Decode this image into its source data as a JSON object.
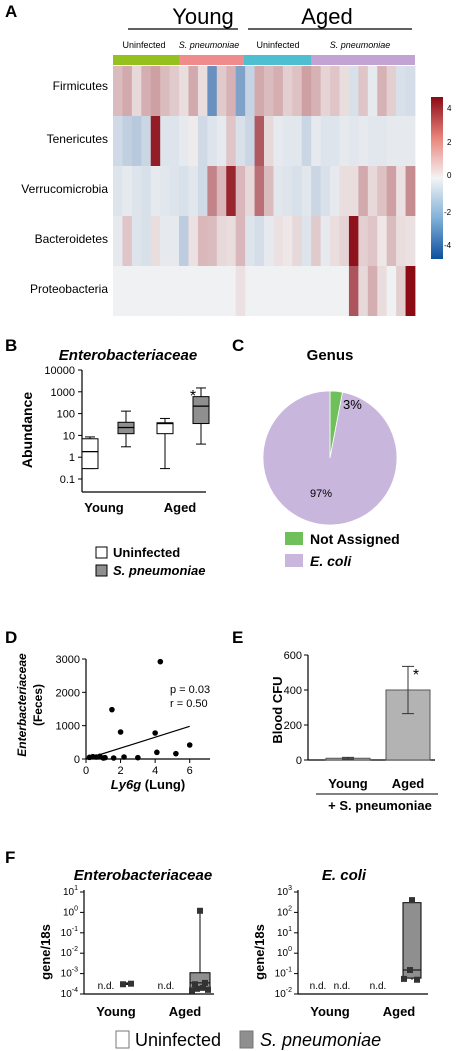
{
  "figure": {
    "panel_letters": [
      "A",
      "B",
      "C",
      "D",
      "E",
      "F"
    ]
  },
  "heatmap": {
    "group_labels": [
      "Young",
      "Aged"
    ],
    "subgroup_labels": [
      "Uninfected",
      "S. pneumoniae",
      "Uninfected",
      "S. pneumoniae"
    ],
    "row_labels": [
      "Firmicutes",
      "Tenericutes",
      "Verrucomicrobia",
      "Bacteroidetes",
      "Proteobacteria"
    ],
    "colorbar_ticks": [
      "4",
      "2",
      "0",
      "-2",
      "-4"
    ],
    "colors": {
      "high": "#8b0a14",
      "mid": "#f4f4f4",
      "low": "#0d4f9c",
      "bar1": "#95c11f",
      "bar2": "#f08b8b",
      "bar3": "#4ebfd0",
      "bar4": "#c3a2d4"
    }
  },
  "panel_b": {
    "title": "Enterobacteriaceae",
    "ylabel": "Abundance",
    "yticks": [
      "10000",
      "1000",
      "100",
      "10",
      "1",
      "0.1"
    ],
    "xticks": [
      "Young",
      "Aged"
    ],
    "star": "*",
    "legend": [
      "Uninfected",
      "S. pneumoniae"
    ]
  },
  "panel_c": {
    "title": "Genus",
    "slices": [
      {
        "label": "Not Assigned",
        "value": 3,
        "text": "3%",
        "color": "#6fbf5a"
      },
      {
        "label": "E. coli",
        "value": 97,
        "text": "97%",
        "color": "#c9b6dc"
      }
    ]
  },
  "panel_d": {
    "ylabel": [
      "Enterbacteriaceae",
      "(Feces)"
    ],
    "xlabel": [
      "Ly6g",
      " (Lung)"
    ],
    "yticks": [
      "3000",
      "2000",
      "1000",
      "0"
    ],
    "xticks": [
      "0",
      "2",
      "4",
      "6"
    ],
    "stats": [
      "p = 0.03",
      "r = 0.50"
    ]
  },
  "panel_e": {
    "ylabel": "Blood CFU",
    "yticks": [
      "600",
      "400",
      "200",
      "0"
    ],
    "xticks": [
      "Young",
      "Aged"
    ],
    "footer": "+ S. pneumoniae",
    "star": "*"
  },
  "panel_f": {
    "left_title": "Enterobacteriaceae",
    "right_title": "E. coli",
    "ylabel": "gene/18s",
    "left_yticks": [
      {
        "b": "10",
        "e": "1"
      },
      {
        "b": "10",
        "e": "0"
      },
      {
        "b": "10",
        "e": "-1"
      },
      {
        "b": "10",
        "e": "-2"
      },
      {
        "b": "10",
        "e": "-3"
      },
      {
        "b": "10",
        "e": "-4"
      }
    ],
    "right_yticks": [
      {
        "b": "10",
        "e": "3"
      },
      {
        "b": "10",
        "e": "2"
      },
      {
        "b": "10",
        "e": "1"
      },
      {
        "b": "10",
        "e": "0"
      },
      {
        "b": "10",
        "e": "-1"
      },
      {
        "b": "10",
        "e": "-2"
      }
    ],
    "xticks": [
      "Young",
      "Aged"
    ],
    "nd": "n.d.",
    "legend": [
      "Uninfected",
      "S. pneumoniae"
    ]
  },
  "chart_data": [
    {
      "type": "heatmap",
      "rows": [
        "Firmicutes",
        "Tenericutes",
        "Verrucomicrobia",
        "Bacteroidetes",
        "Proteobacteria"
      ],
      "column_groups": [
        "Young Uninfected",
        "Young S. pneumoniae",
        "Aged Uninfected",
        "Aged S. pneumoniae"
      ],
      "colorbar_range": [
        -5,
        5
      ],
      "values": [
        [
          1.2,
          1.6,
          0.6,
          1.5,
          1.8,
          1.2,
          0.9,
          0.5,
          1.6,
          0.5,
          -3,
          0.9,
          1.4,
          -2.5,
          -1.0,
          1.6,
          1.2,
          1.5,
          0.8,
          1.1,
          1.8,
          1.4,
          0.7,
          1.0,
          0.5,
          -0.6,
          1.0,
          -0.3,
          1.4,
          0.8,
          -0.6,
          -0.7
        ],
        [
          -0.8,
          -1.1,
          -1.3,
          -0.9,
          4.6,
          -0.5,
          -0.5,
          -0.3,
          0.2,
          -0.8,
          -0.5,
          -0.3,
          1.0,
          -0.6,
          -0.9,
          3.3,
          0.6,
          -0.3,
          -0.4,
          -0.4,
          -0.9,
          -0.3,
          -0.5,
          -0.5,
          -0.3,
          -0.4,
          -0.3,
          -0.4,
          -0.4,
          -0.3,
          -0.3,
          -0.3
        ],
        [
          -0.5,
          -0.3,
          -0.5,
          -0.6,
          -0.3,
          -0.4,
          -0.5,
          -0.6,
          -0.4,
          -0.8,
          2.4,
          1.3,
          4.4,
          1.3,
          0.6,
          2.8,
          1.2,
          -0.4,
          -0.5,
          -0.6,
          -0.4,
          -0.9,
          -0.6,
          -0.3,
          0.5,
          0.5,
          1.6,
          0.6,
          1.1,
          1.8,
          0.4,
          2.2
        ],
        [
          -0.3,
          1.0,
          -0.5,
          -0.6,
          0.5,
          -0.3,
          -0.3,
          -1.2,
          0.4,
          1.3,
          1.2,
          0.6,
          0.5,
          1.3,
          -0.5,
          -0.7,
          -0.3,
          0.4,
          0.3,
          0.6,
          -0.5,
          0.9,
          -0.3,
          0.5,
          0.7,
          4.8,
          0.8,
          1.0,
          0.3,
          1.2,
          0.5,
          0.4
        ],
        [
          -0.1,
          -0.1,
          -0.1,
          -0.1,
          -0.1,
          -0.1,
          -0.1,
          -0.1,
          -0.1,
          -0.1,
          -0.1,
          -0.1,
          -0.1,
          0.4,
          -0.1,
          -0.1,
          -0.1,
          -0.1,
          -0.1,
          -0.1,
          -0.1,
          -0.1,
          -0.1,
          -0.1,
          -0.1,
          3.4,
          0.6,
          1.5,
          0.5,
          -0.1,
          0.8,
          5.0
        ]
      ]
    },
    {
      "type": "box",
      "title": "Enterobacteriaceae",
      "ylabel": "Abundance",
      "yscale": "log",
      "ylim": [
        0.1,
        10000
      ],
      "categories": [
        "Young",
        "Aged"
      ],
      "series": [
        {
          "name": "Uninfected",
          "boxes": [
            {
              "min": 0.3,
              "q1": 0.3,
              "median": 1.8,
              "q3": 7,
              "max": 8.5
            },
            {
              "min": 0.3,
              "q1": 12,
              "median": 35,
              "q3": 38,
              "max": 60
            }
          ]
        },
        {
          "name": "S. pneumoniae",
          "boxes": [
            {
              "min": 3,
              "q1": 12,
              "median": 23,
              "q3": 40,
              "max": 130
            },
            {
              "min": 4,
              "q1": 35,
              "median": 220,
              "q3": 600,
              "max": 1500
            }
          ]
        }
      ]
    },
    {
      "type": "pie",
      "title": "Genus",
      "labels": [
        "Not Assigned",
        "E. coli"
      ],
      "values": [
        3,
        97
      ]
    },
    {
      "type": "scatter",
      "xlabel": "Ly6g (Lung)",
      "ylabel": "Enterbacteriaceae (Feces)",
      "xlim": [
        0,
        7
      ],
      "ylim": [
        0,
        3000
      ],
      "points": [
        [
          0.2,
          50
        ],
        [
          0.4,
          70
        ],
        [
          0.6,
          60
        ],
        [
          0.8,
          80
        ],
        [
          1.0,
          30
        ],
        [
          1.1,
          40
        ],
        [
          1.5,
          1480
        ],
        [
          1.6,
          30
        ],
        [
          2.0,
          810
        ],
        [
          2.2,
          60
        ],
        [
          3.0,
          40
        ],
        [
          4.0,
          780
        ],
        [
          4.1,
          200
        ],
        [
          4.3,
          2920
        ],
        [
          5.2,
          160
        ],
        [
          6.0,
          420
        ]
      ],
      "fit_line": [
        [
          0,
          0
        ],
        [
          6,
          980
        ]
      ]
    },
    {
      "type": "bar",
      "ylabel": "Blood CFU",
      "ylim": [
        0,
        600
      ],
      "categories": [
        "Young",
        "Aged"
      ],
      "values": [
        10,
        400
      ],
      "errors": [
        [
          5,
          15
        ],
        [
          265,
          535
        ]
      ]
    },
    {
      "type": "box",
      "title": "Enterobacteriaceae",
      "ylabel": "gene/18s",
      "yscale": "log",
      "ylim": [
        0.0001,
        10
      ],
      "categories": [
        "Young",
        "Aged"
      ],
      "series": [
        {
          "name": "Uninfected",
          "values": [
            "n.d.",
            "n.d."
          ]
        },
        {
          "name": "S. pneumoniae",
          "boxes": [
            {
              "min": 0.0003,
              "q1": 0.0003,
              "median": 0.0003,
              "q3": 0.00035,
              "max": 0.00035
            },
            {
              "min": 0.00015,
              "q1": 0.00018,
              "median": 0.00035,
              "q3": 0.0011,
              "max": 1.2
            }
          ]
        }
      ]
    },
    {
      "type": "box",
      "title": "E. coli",
      "ylabel": "gene/18s",
      "yscale": "log",
      "ylim": [
        0.01,
        1000
      ],
      "categories": [
        "Young",
        "Aged"
      ],
      "series": [
        {
          "name": "Uninfected",
          "values": [
            "n.d.",
            "n.d."
          ]
        },
        {
          "name": "S. pneumoniae",
          "boxes": [
            {
              "min": "n.d."
            },
            {
              "min": 0.05,
              "q1": 0.06,
              "median": 0.15,
              "q3": 300,
              "max": 400
            }
          ]
        }
      ]
    }
  ]
}
